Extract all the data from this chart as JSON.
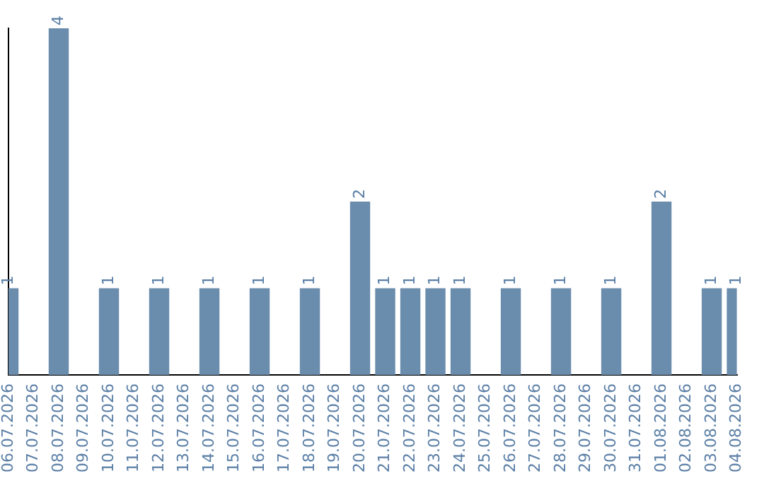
{
  "chart_data": {
    "type": "bar",
    "categories": [
      "06.07.2026",
      "07.07.2026",
      "08.07.2026",
      "09.07.2026",
      "10.07.2026",
      "11.07.2026",
      "12.07.2026",
      "13.07.2026",
      "14.07.2026",
      "15.07.2026",
      "16.07.2026",
      "17.07.2026",
      "18.07.2026",
      "19.07.2026",
      "20.07.2026",
      "21.07.2026",
      "22.07.2026",
      "23.07.2026",
      "24.07.2026",
      "25.07.2026",
      "26.07.2026",
      "27.07.2026",
      "28.07.2026",
      "29.07.2026",
      "30.07.2026",
      "31.07.2026",
      "01.08.2026",
      "02.08.2026",
      "03.08.2026",
      "04.08.2026"
    ],
    "values": [
      1,
      0,
      4,
      0,
      1,
      0,
      1,
      0,
      1,
      0,
      1,
      0,
      1,
      0,
      2,
      1,
      1,
      1,
      1,
      0,
      1,
      0,
      1,
      0,
      1,
      0,
      2,
      0,
      1,
      1
    ],
    "value_labels": [
      "1",
      null,
      "4",
      null,
      "1",
      null,
      "1",
      null,
      "1",
      null,
      "1",
      null,
      "1",
      null,
      "2",
      "1",
      "1",
      "1",
      "1",
      null,
      "1",
      null,
      "1",
      null,
      "1",
      null,
      "2",
      null,
      "1",
      "1"
    ],
    "color": "#6a8cad",
    "grid": false,
    "legend": false
  }
}
